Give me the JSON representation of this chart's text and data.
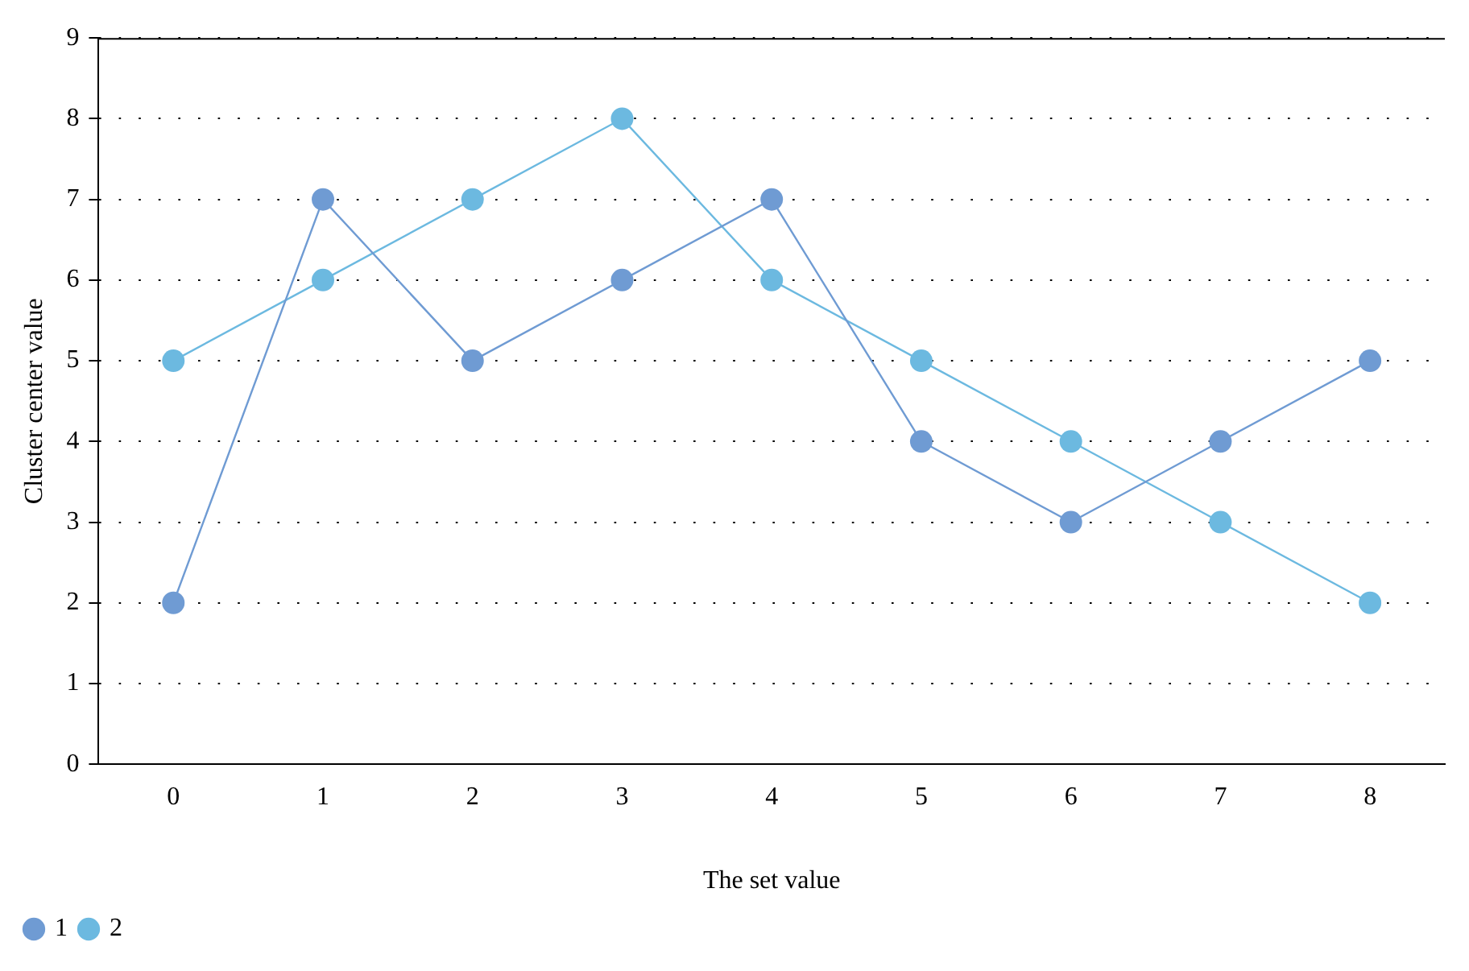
{
  "chart_data": {
    "type": "line",
    "xlabel": "The set value",
    "ylabel": "Cluster center value",
    "categories": [
      "0",
      "1",
      "2",
      "3",
      "4",
      "5",
      "6",
      "7",
      "8"
    ],
    "series": [
      {
        "name": "1",
        "color": "#6f9bd3",
        "values": [
          2,
          7,
          5,
          6,
          7,
          4,
          3,
          4,
          5
        ]
      },
      {
        "name": "2",
        "color": "#6cb9e0",
        "values": [
          5,
          6,
          7,
          8,
          6,
          5,
          4,
          3,
          2
        ]
      }
    ],
    "ylim": [
      0,
      9
    ],
    "yticks": [
      0,
      1,
      2,
      3,
      4,
      5,
      6,
      7,
      8,
      9
    ],
    "grid": "y",
    "legend": "bottom left",
    "marker": "circle",
    "line_style": "solid"
  }
}
